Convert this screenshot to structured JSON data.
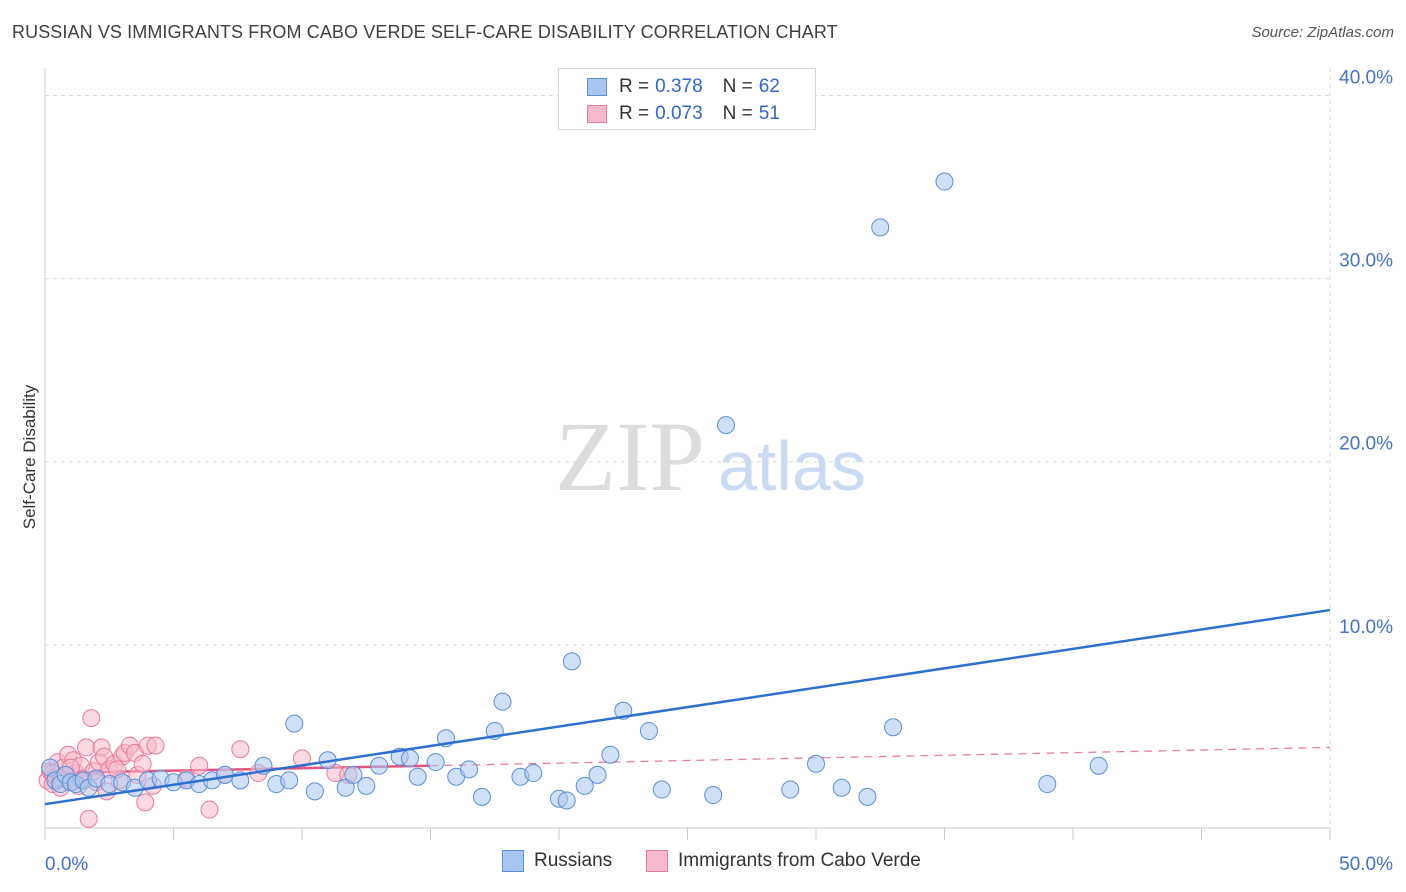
{
  "title": "RUSSIAN VS IMMIGRANTS FROM CABO VERDE SELF-CARE DISABILITY CORRELATION CHART",
  "source": "Source: ZipAtlas.com",
  "watermark": {
    "zip": "ZIP",
    "atlas": "atlas"
  },
  "colors": {
    "blue_fill": "#a9c6f0",
    "blue_stroke": "#5b8fd6",
    "blue_line": "#2f6fd0",
    "pink_fill": "#f6b9cb",
    "pink_stroke": "#e87a9c",
    "pink_line": "#e3547e",
    "tick_text": "#4472c4",
    "grid": "#dcdcdc"
  },
  "legend": {
    "rows": [
      {
        "r_label": "R =",
        "r_value": "0.378",
        "n_label": "N =",
        "n_value": "62"
      },
      {
        "r_label": "R =",
        "r_value": "0.073",
        "n_label": "N =",
        "n_value": "51"
      }
    ]
  },
  "bottom_legend": {
    "series1": "Russians",
    "series2": "Immigrants from Cabo Verde"
  },
  "chart_data": {
    "type": "scatter",
    "title": "RUSSIAN VS IMMIGRANTS FROM CABO VERDE SELF-CARE DISABILITY CORRELATION CHART",
    "xlabel": "",
    "ylabel": "Self-Care Disability",
    "xlim": [
      0,
      50
    ],
    "ylim": [
      0,
      41.5
    ],
    "x_tick_labels": [
      "0.0%",
      "50.0%"
    ],
    "y_ticks": [
      10,
      20,
      30,
      40
    ],
    "y_tick_labels": [
      "10.0%",
      "20.0%",
      "30.0%",
      "40.0%"
    ],
    "grid": true,
    "legend_position": "top-center",
    "series": [
      {
        "name": "Russians",
        "R": 0.378,
        "N": 62,
        "trend": {
          "x": [
            0,
            50
          ],
          "y": [
            1.3,
            11.9
          ],
          "style": "solid"
        },
        "points": [
          [
            0.2,
            3.3
          ],
          [
            0.4,
            2.6
          ],
          [
            0.6,
            2.4
          ],
          [
            0.8,
            2.9
          ],
          [
            1.0,
            2.5
          ],
          [
            1.2,
            2.4
          ],
          [
            1.5,
            2.6
          ],
          [
            1.7,
            2.2
          ],
          [
            2.0,
            2.7
          ],
          [
            2.5,
            2.4
          ],
          [
            3.0,
            2.5
          ],
          [
            3.5,
            2.2
          ],
          [
            4.0,
            2.6
          ],
          [
            4.5,
            2.7
          ],
          [
            5.0,
            2.5
          ],
          [
            5.5,
            2.6
          ],
          [
            6.0,
            2.4
          ],
          [
            6.5,
            2.6
          ],
          [
            7.0,
            2.9
          ],
          [
            7.6,
            2.6
          ],
          [
            8.5,
            3.4
          ],
          [
            9.0,
            2.4
          ],
          [
            9.5,
            2.6
          ],
          [
            9.7,
            5.7
          ],
          [
            10.5,
            2.0
          ],
          [
            11.0,
            3.7
          ],
          [
            11.7,
            2.2
          ],
          [
            12.0,
            2.9
          ],
          [
            12.5,
            2.3
          ],
          [
            13.0,
            3.4
          ],
          [
            13.8,
            3.9
          ],
          [
            14.2,
            3.8
          ],
          [
            14.5,
            2.8
          ],
          [
            15.2,
            3.6
          ],
          [
            15.6,
            4.9
          ],
          [
            16.0,
            2.8
          ],
          [
            16.5,
            3.2
          ],
          [
            17.0,
            1.7
          ],
          [
            17.5,
            5.3
          ],
          [
            17.8,
            6.9
          ],
          [
            18.5,
            2.8
          ],
          [
            19.0,
            3.0
          ],
          [
            20.0,
            1.6
          ],
          [
            20.3,
            1.5
          ],
          [
            20.5,
            9.1
          ],
          [
            21.0,
            2.3
          ],
          [
            21.5,
            2.9
          ],
          [
            22.0,
            4.0
          ],
          [
            22.5,
            6.4
          ],
          [
            23.5,
            5.3
          ],
          [
            24.0,
            2.1
          ],
          [
            26.0,
            1.8
          ],
          [
            26.5,
            22.0
          ],
          [
            29.0,
            2.1
          ],
          [
            30.0,
            3.5
          ],
          [
            31.0,
            2.2
          ],
          [
            32.0,
            1.7
          ],
          [
            32.5,
            32.8
          ],
          [
            33.0,
            5.5
          ],
          [
            35.0,
            35.3
          ],
          [
            39.0,
            2.4
          ],
          [
            41.0,
            3.4
          ]
        ]
      },
      {
        "name": "Immigrants from Cabo Verde",
        "R": 0.073,
        "N": 51,
        "trend": {
          "x": [
            0,
            15
          ],
          "y": [
            3.0,
            3.4
          ],
          "style": "solid",
          "extended": {
            "x": [
              15,
              50
            ],
            "y": [
              3.4,
              4.4
            ],
            "style": "dashed"
          }
        },
        "points": [
          [
            0.1,
            2.6
          ],
          [
            0.2,
            3.1
          ],
          [
            0.3,
            2.4
          ],
          [
            0.4,
            2.8
          ],
          [
            0.5,
            3.6
          ],
          [
            0.6,
            2.2
          ],
          [
            0.7,
            3.3
          ],
          [
            0.8,
            2.9
          ],
          [
            0.9,
            4.0
          ],
          [
            1.0,
            2.5
          ],
          [
            1.1,
            3.7
          ],
          [
            1.2,
            3.0
          ],
          [
            1.3,
            2.3
          ],
          [
            1.4,
            3.4
          ],
          [
            1.5,
            2.7
          ],
          [
            1.6,
            4.4
          ],
          [
            1.7,
            0.5
          ],
          [
            1.8,
            6.0
          ],
          [
            1.9,
            3.1
          ],
          [
            2.0,
            2.5
          ],
          [
            2.1,
            3.6
          ],
          [
            2.2,
            4.4
          ],
          [
            2.3,
            3.9
          ],
          [
            2.4,
            2.0
          ],
          [
            2.5,
            3.2
          ],
          [
            2.7,
            3.5
          ],
          [
            2.9,
            2.6
          ],
          [
            3.0,
            3.9
          ],
          [
            3.1,
            4.1
          ],
          [
            3.3,
            4.5
          ],
          [
            3.5,
            4.1
          ],
          [
            3.6,
            2.9
          ],
          [
            3.8,
            3.5
          ],
          [
            3.9,
            1.4
          ],
          [
            4.0,
            4.5
          ],
          [
            4.2,
            2.3
          ],
          [
            4.3,
            4.5
          ],
          [
            5.5,
            2.7
          ],
          [
            6.0,
            3.4
          ],
          [
            6.4,
            1.0
          ],
          [
            7.0,
            2.9
          ],
          [
            7.6,
            4.3
          ],
          [
            8.3,
            3.0
          ],
          [
            10.0,
            3.8
          ],
          [
            11.3,
            3.0
          ],
          [
            11.8,
            2.9
          ],
          [
            0.3,
            3.0
          ],
          [
            0.6,
            2.7
          ],
          [
            1.0,
            3.3
          ],
          [
            1.4,
            2.6
          ],
          [
            2.8,
            3.2
          ]
        ]
      }
    ]
  }
}
